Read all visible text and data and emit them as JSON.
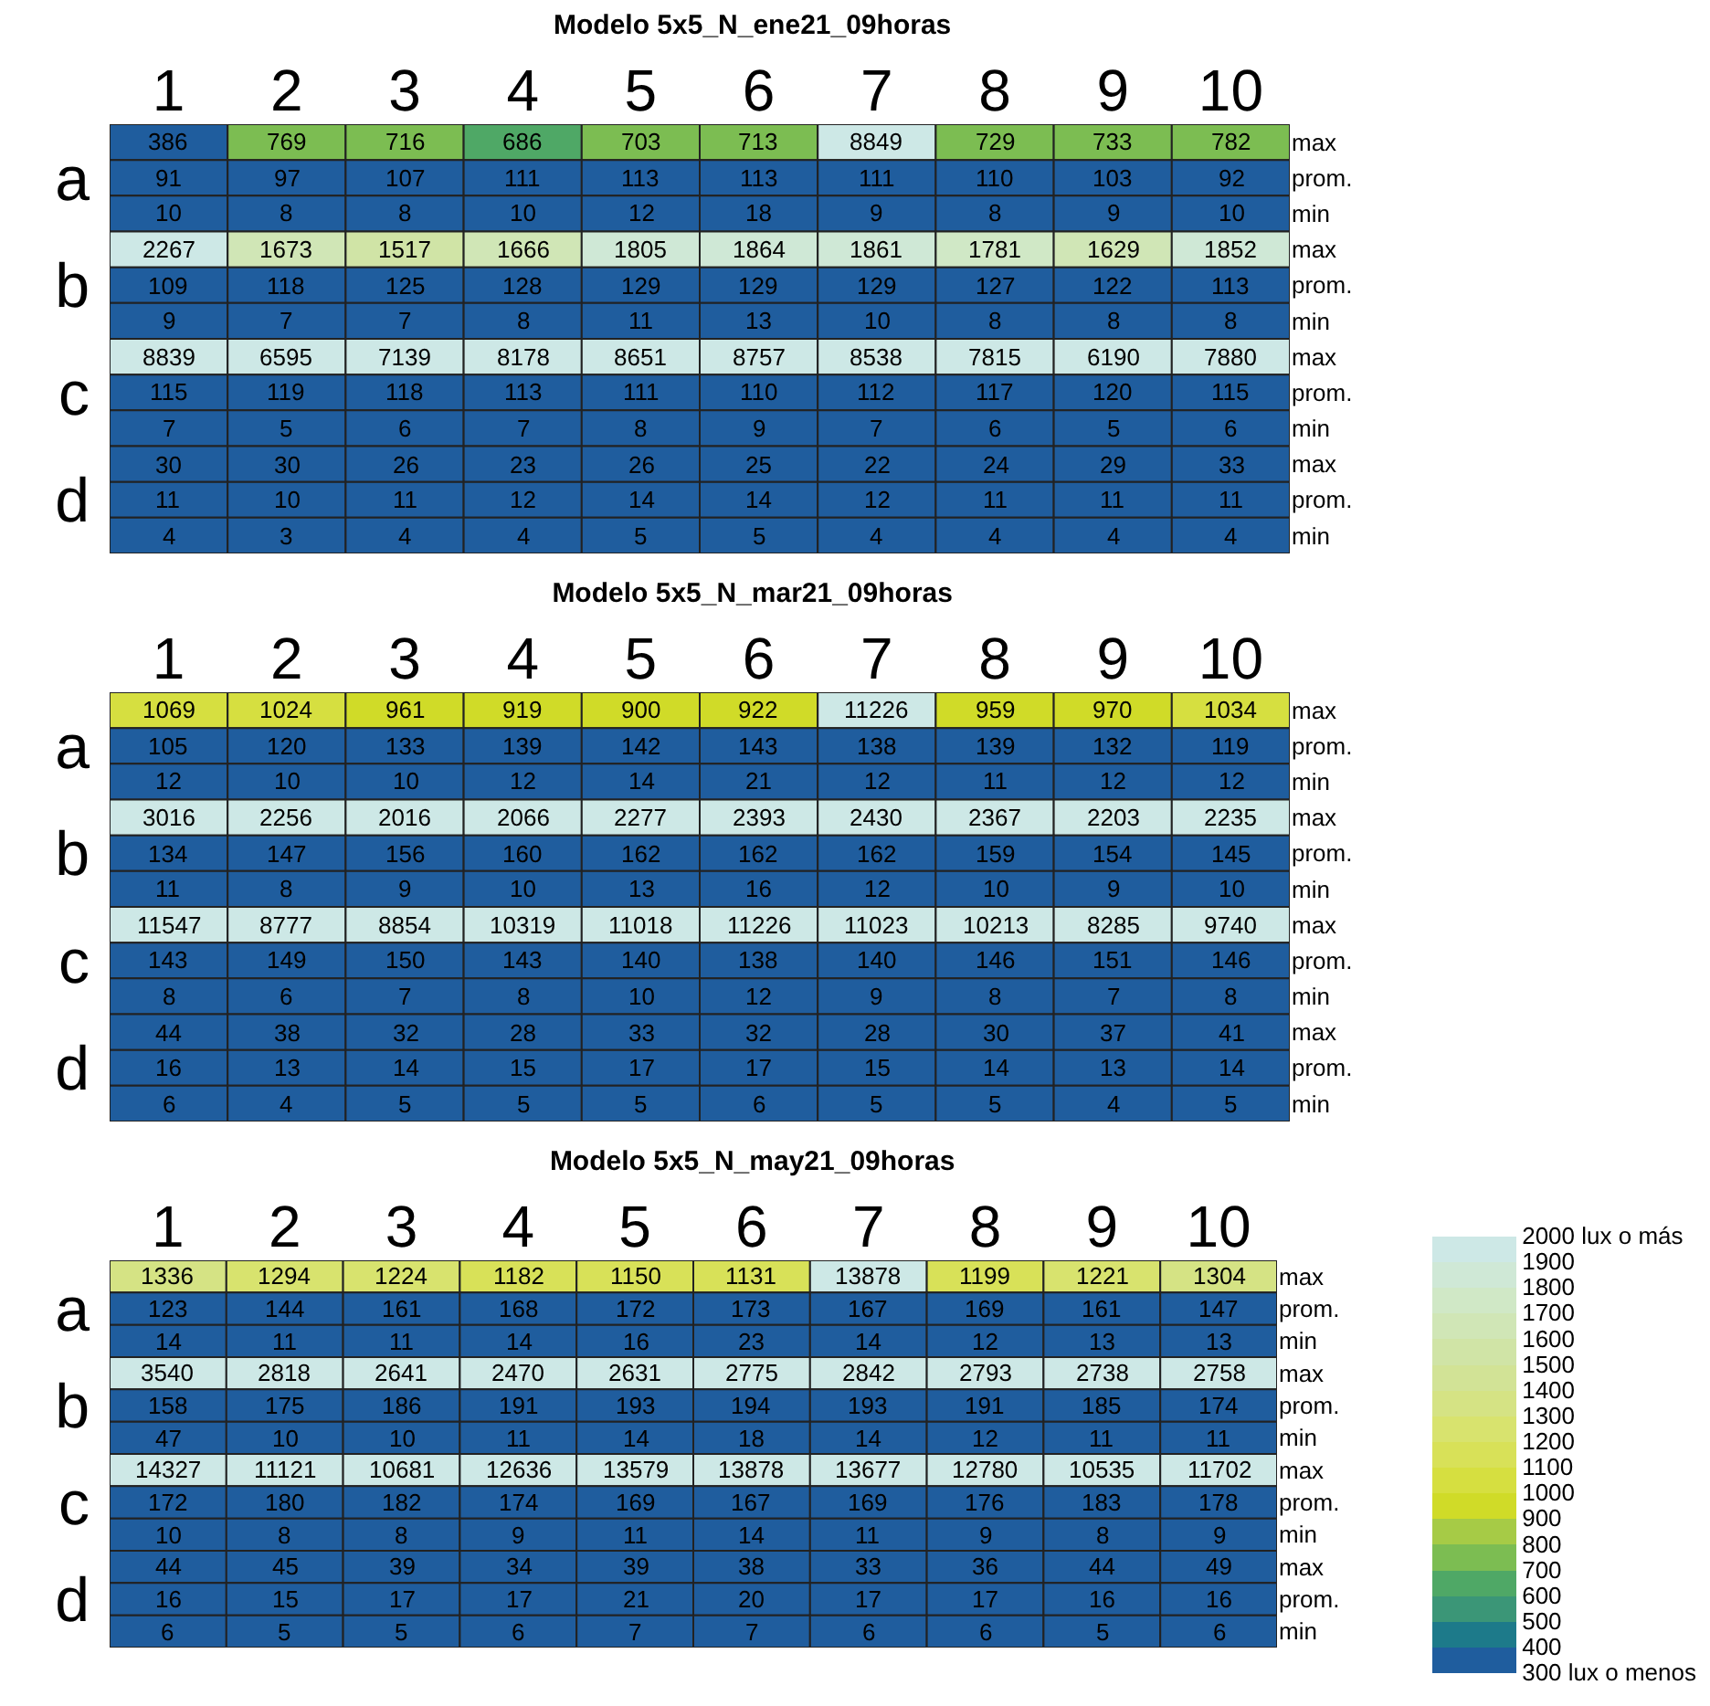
{
  "chart_data": [
    {
      "type": "heatmap",
      "title": "Modelo 5x5_N_ene21_09horas",
      "categories": [
        "1",
        "2",
        "3",
        "4",
        "5",
        "6",
        "7",
        "8",
        "9",
        "10"
      ],
      "y_categories": [
        null,
        "a",
        null,
        null,
        "b",
        null,
        null,
        "c",
        null,
        null,
        "d",
        null
      ],
      "y2_categories": [
        "max",
        "prom.",
        "min",
        "max",
        "prom.",
        "min",
        "max",
        "prom.",
        "min",
        "max",
        "prom.",
        "min"
      ],
      "data_labels": true,
      "cells": [
        [
          386,
          769,
          716,
          686,
          703,
          713,
          8849,
          729,
          733,
          782
        ],
        [
          91,
          97,
          107,
          111,
          113,
          113,
          111,
          110,
          103,
          92
        ],
        [
          10,
          8,
          8,
          10,
          12,
          18,
          9,
          8,
          9,
          10
        ],
        [
          2267,
          1673,
          1517,
          1666,
          1805,
          1864,
          1861,
          1781,
          1629,
          1852
        ],
        [
          109,
          118,
          125,
          128,
          129,
          129,
          129,
          127,
          122,
          113
        ],
        [
          9,
          7,
          7,
          8,
          11,
          13,
          10,
          8,
          8,
          8
        ],
        [
          8839,
          6595,
          7139,
          8178,
          8651,
          8757,
          8538,
          7815,
          6190,
          7880
        ],
        [
          115,
          119,
          118,
          113,
          111,
          110,
          112,
          117,
          120,
          115
        ],
        [
          7,
          5,
          6,
          7,
          8,
          9,
          7,
          6,
          5,
          6
        ],
        [
          30,
          30,
          26,
          23,
          26,
          25,
          22,
          24,
          29,
          33
        ],
        [
          11,
          10,
          11,
          12,
          14,
          14,
          12,
          11,
          11,
          11
        ],
        [
          4,
          3,
          4,
          4,
          5,
          5,
          4,
          4,
          4,
          4
        ]
      ]
    },
    {
      "type": "heatmap",
      "title": "Modelo 5x5_N_mar21_09horas",
      "categories": [
        "1",
        "2",
        "3",
        "4",
        "5",
        "6",
        "7",
        "8",
        "9",
        "10"
      ],
      "y_categories": [
        null,
        "a",
        null,
        null,
        "b",
        null,
        null,
        "c",
        null,
        null,
        "d",
        null
      ],
      "y2_categories": [
        "max",
        "prom.",
        "min",
        "max",
        "prom.",
        "min",
        "max",
        "prom.",
        "min",
        "max",
        "prom.",
        "min"
      ],
      "data_labels": true,
      "cells": [
        [
          1069,
          1024,
          961,
          919,
          900,
          922,
          11226,
          959,
          970,
          1034
        ],
        [
          105,
          120,
          133,
          139,
          142,
          143,
          138,
          139,
          132,
          119
        ],
        [
          12,
          10,
          10,
          12,
          14,
          21,
          12,
          11,
          12,
          12
        ],
        [
          3016,
          2256,
          2016,
          2066,
          2277,
          2393,
          2430,
          2367,
          2203,
          2235
        ],
        [
          134,
          147,
          156,
          160,
          162,
          162,
          162,
          159,
          154,
          145
        ],
        [
          11,
          8,
          9,
          10,
          13,
          16,
          12,
          10,
          9,
          10
        ],
        [
          11547,
          8777,
          8854,
          10319,
          11018,
          11226,
          11023,
          10213,
          8285,
          9740
        ],
        [
          143,
          149,
          150,
          143,
          140,
          138,
          140,
          146,
          151,
          146
        ],
        [
          8,
          6,
          7,
          8,
          10,
          12,
          9,
          8,
          7,
          8
        ],
        [
          44,
          38,
          32,
          28,
          33,
          32,
          28,
          30,
          37,
          41
        ],
        [
          16,
          13,
          14,
          15,
          17,
          17,
          15,
          14,
          13,
          14
        ],
        [
          6,
          4,
          5,
          5,
          5,
          6,
          5,
          5,
          4,
          5
        ]
      ]
    },
    {
      "type": "heatmap",
      "title": "Modelo 5x5_N_may21_09horas",
      "categories": [
        "1",
        "2",
        "3",
        "4",
        "5",
        "6",
        "7",
        "8",
        "9",
        "10"
      ],
      "y_categories": [
        null,
        "a",
        null,
        null,
        "b",
        null,
        null,
        "c",
        null,
        null,
        "d",
        null
      ],
      "y2_categories": [
        "max",
        "prom.",
        "min",
        "max",
        "prom.",
        "min",
        "max",
        "prom.",
        "min",
        "max",
        "prom.",
        "min"
      ],
      "clim": [
        300,
        2000
      ],
      "data_labels": true,
      "cticks": [
        {
          "value": 300,
          "label": "300 lux o menos"
        },
        400,
        500,
        600,
        700,
        800,
        900,
        1000,
        1100,
        1200,
        1300,
        1400,
        1500,
        1600,
        1700,
        1800,
        1900,
        {
          "value": 2000,
          "label": "2000 lux o más"
        }
      ],
      "cells": [
        [
          1336,
          1294,
          1224,
          1182,
          1150,
          1131,
          13878,
          1199,
          1221,
          1304
        ],
        [
          123,
          144,
          161,
          168,
          172,
          173,
          167,
          169,
          161,
          147
        ],
        [
          14,
          11,
          11,
          14,
          16,
          23,
          14,
          12,
          13,
          13
        ],
        [
          3540,
          2818,
          2641,
          2470,
          2631,
          2775,
          2842,
          2793,
          2738,
          2758
        ],
        [
          158,
          175,
          186,
          191,
          193,
          194,
          193,
          191,
          185,
          174
        ],
        [
          47,
          10,
          10,
          11,
          14,
          18,
          14,
          12,
          11,
          11
        ],
        [
          14327,
          11121,
          10681,
          12636,
          13579,
          13878,
          13677,
          12780,
          10535,
          11702
        ],
        [
          172,
          180,
          182,
          174,
          169,
          167,
          169,
          176,
          183,
          178
        ],
        [
          10,
          8,
          8,
          9,
          11,
          14,
          11,
          9,
          8,
          9
        ],
        [
          44,
          45,
          39,
          34,
          39,
          38,
          33,
          36,
          44,
          49
        ],
        [
          16,
          15,
          17,
          17,
          21,
          20,
          17,
          17,
          16,
          16
        ],
        [
          6,
          5,
          5,
          6,
          7,
          7,
          6,
          6,
          5,
          6
        ]
      ]
    }
  ]
}
